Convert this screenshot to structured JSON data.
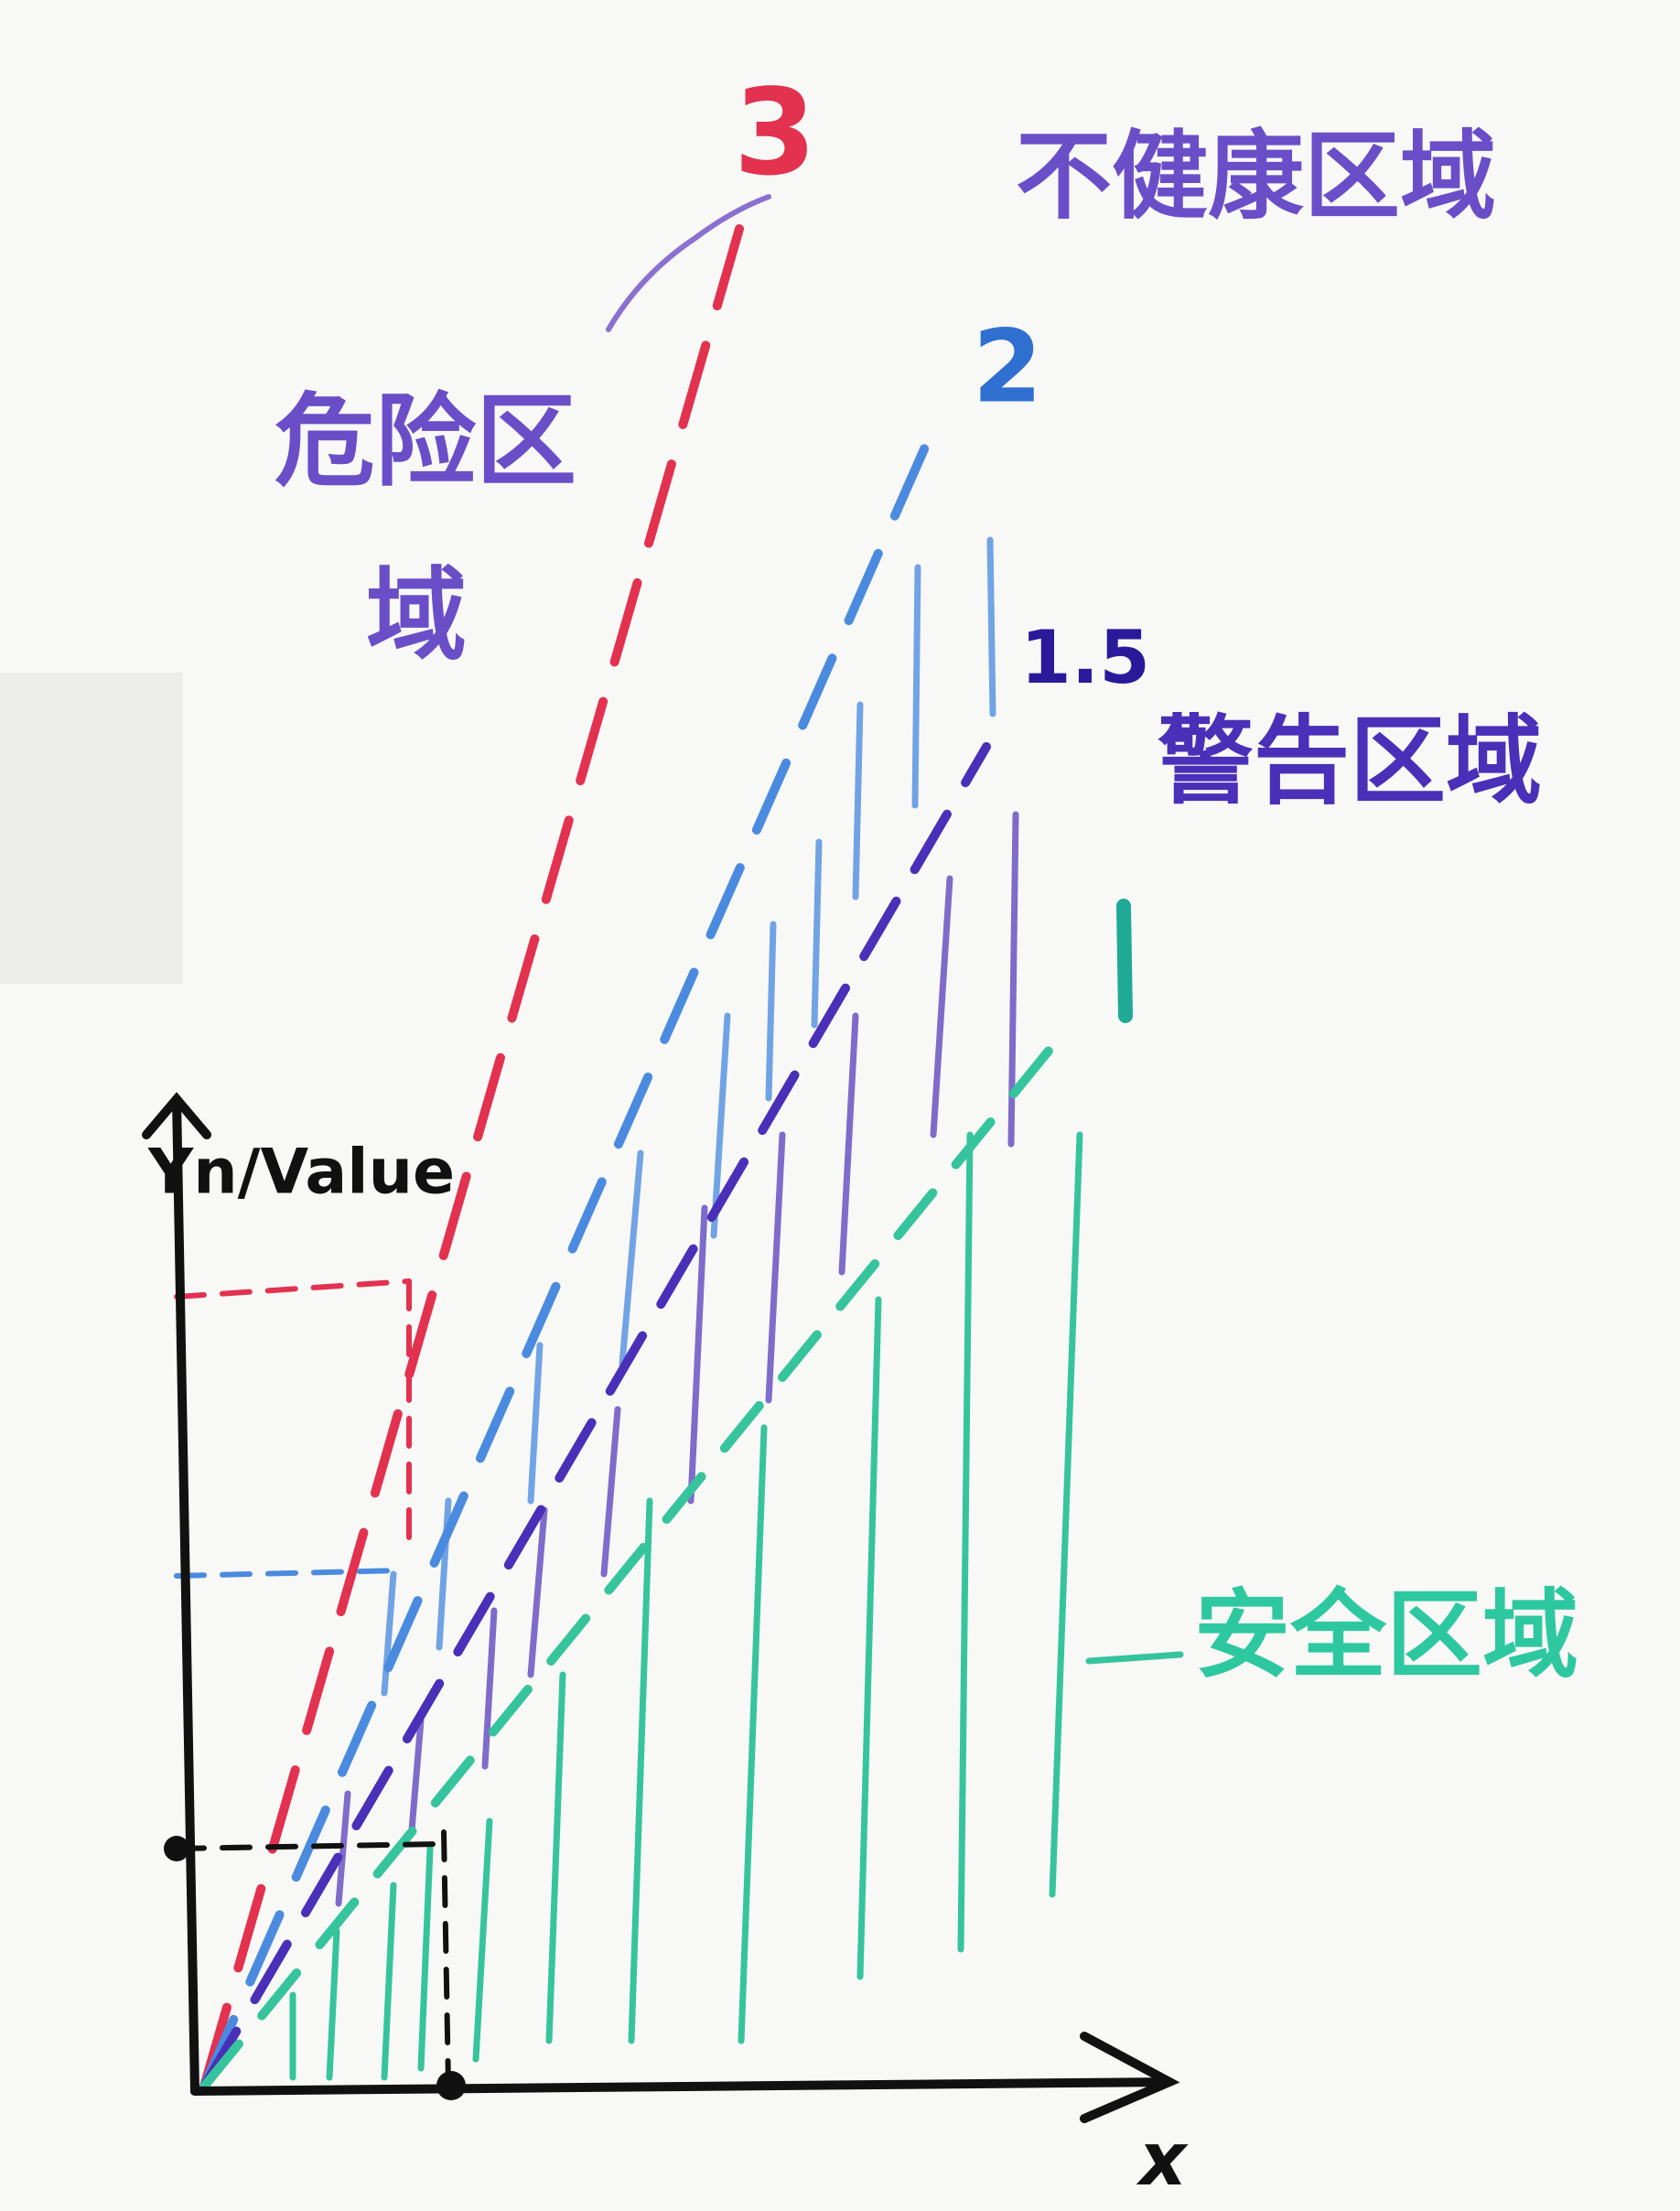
{
  "axes": {
    "y_label": "Yn/Value",
    "x_label": "x"
  },
  "lines": [
    {
      "label": "3"
    },
    {
      "label": "2"
    },
    {
      "label": "1.5"
    }
  ],
  "regions": {
    "unhealthy": "不健康区域",
    "danger_line1": "危险区",
    "danger_line2": "域",
    "warning": "警告区域",
    "safe": "安全区域"
  }
}
